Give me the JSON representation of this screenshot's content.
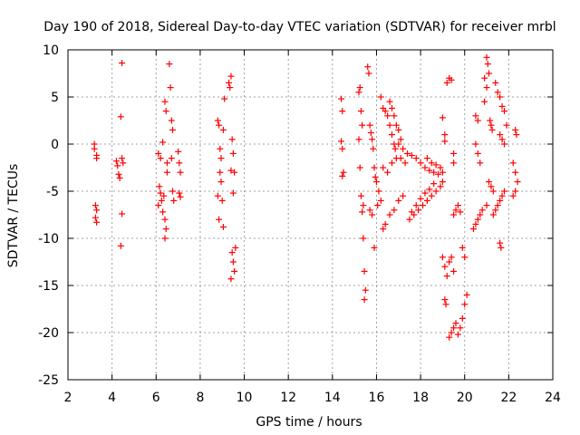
{
  "chart_data": {
    "type": "scatter",
    "title": "Day 190 of 2018, Sidereal Day-to-day VTEC variation (SDTVAR) for receiver mrbl",
    "xlabel": "GPS time / hours",
    "ylabel": "SDTVAR / TECUs",
    "xlim": [
      2,
      24
    ],
    "ylim": [
      -25,
      10
    ],
    "xticks": [
      "2",
      "4",
      "6",
      "8",
      "10",
      "12",
      "14",
      "16",
      "18",
      "20",
      "22",
      "24"
    ],
    "yticks": [
      "10",
      "5",
      "0",
      "-5",
      "-10",
      "-15",
      "-20",
      "-25"
    ],
    "grid": true,
    "marker": "+",
    "color": "#ff0000",
    "series": [
      {
        "name": "SDTVAR",
        "points": [
          [
            3.2,
            0.0
          ],
          [
            3.2,
            -0.5
          ],
          [
            3.3,
            -1.2
          ],
          [
            3.3,
            -1.5
          ],
          [
            3.25,
            -6.5
          ],
          [
            3.3,
            -7.0
          ],
          [
            3.25,
            -7.8
          ],
          [
            3.3,
            -8.3
          ],
          [
            4.2,
            -1.8
          ],
          [
            4.25,
            -2.3
          ],
          [
            4.3,
            -3.2
          ],
          [
            4.35,
            -3.6
          ],
          [
            4.45,
            -1.5
          ],
          [
            4.5,
            -2.0
          ],
          [
            4.4,
            2.9
          ],
          [
            4.45,
            8.6
          ],
          [
            4.45,
            -7.4
          ],
          [
            4.4,
            -10.8
          ],
          [
            6.1,
            -1.0
          ],
          [
            6.2,
            -1.5
          ],
          [
            6.3,
            0.2
          ],
          [
            6.15,
            -4.5
          ],
          [
            6.2,
            -5.2
          ],
          [
            6.25,
            -6.0
          ],
          [
            6.1,
            -6.5
          ],
          [
            6.3,
            -7.2
          ],
          [
            6.35,
            -5.5
          ],
          [
            6.4,
            4.5
          ],
          [
            6.45,
            3.5
          ],
          [
            6.5,
            -2.0
          ],
          [
            6.5,
            -3.0
          ],
          [
            6.4,
            -8.0
          ],
          [
            6.45,
            -9.0
          ],
          [
            6.4,
            -10.0
          ],
          [
            6.6,
            8.5
          ],
          [
            6.65,
            6.0
          ],
          [
            6.7,
            2.5
          ],
          [
            6.75,
            1.5
          ],
          [
            6.7,
            -1.5
          ],
          [
            6.75,
            -5.0
          ],
          [
            6.8,
            -6.0
          ],
          [
            7.0,
            -0.8
          ],
          [
            7.05,
            -2.0
          ],
          [
            7.1,
            -3.0
          ],
          [
            7.05,
            -5.2
          ],
          [
            7.1,
            -5.6
          ],
          [
            8.8,
            2.5
          ],
          [
            8.85,
            2.0
          ],
          [
            8.9,
            -0.5
          ],
          [
            8.95,
            -1.5
          ],
          [
            8.9,
            -3.0
          ],
          [
            8.95,
            -4.0
          ],
          [
            8.8,
            -5.5
          ],
          [
            9.0,
            -6.0
          ],
          [
            8.85,
            -8.0
          ],
          [
            9.05,
            -8.8
          ],
          [
            9.1,
            4.8
          ],
          [
            9.05,
            1.5
          ],
          [
            9.3,
            6.5
          ],
          [
            9.35,
            6.0
          ],
          [
            9.4,
            7.2
          ],
          [
            9.45,
            0.5
          ],
          [
            9.5,
            -1.0
          ],
          [
            9.4,
            -2.8
          ],
          [
            9.5,
            -5.2
          ],
          [
            9.55,
            -3.0
          ],
          [
            9.45,
            -11.5
          ],
          [
            9.5,
            -12.5
          ],
          [
            9.55,
            -13.5
          ],
          [
            9.4,
            -14.3
          ],
          [
            9.6,
            -11.0
          ],
          [
            14.4,
            4.8
          ],
          [
            14.45,
            3.5
          ],
          [
            14.4,
            0.3
          ],
          [
            14.45,
            -0.5
          ],
          [
            14.5,
            -3.0
          ],
          [
            14.45,
            -3.4
          ],
          [
            15.2,
            5.5
          ],
          [
            15.25,
            6.0
          ],
          [
            15.3,
            3.5
          ],
          [
            15.35,
            2.0
          ],
          [
            15.2,
            0.5
          ],
          [
            15.25,
            -2.5
          ],
          [
            15.3,
            -5.5
          ],
          [
            15.4,
            -6.5
          ],
          [
            15.35,
            -7.2
          ],
          [
            15.4,
            -10.0
          ],
          [
            15.45,
            -13.5
          ],
          [
            15.5,
            -15.5
          ],
          [
            15.45,
            -16.5
          ],
          [
            15.6,
            8.2
          ],
          [
            15.65,
            7.5
          ],
          [
            15.7,
            2.0
          ],
          [
            15.75,
            1.2
          ],
          [
            15.8,
            0.5
          ],
          [
            15.85,
            -0.5
          ],
          [
            15.9,
            -2.5
          ],
          [
            15.95,
            -3.5
          ],
          [
            16.0,
            -4.0
          ],
          [
            16.1,
            -5.0
          ],
          [
            16.2,
            -6.0
          ],
          [
            15.7,
            -7.0
          ],
          [
            15.8,
            -7.5
          ],
          [
            15.9,
            -11.0
          ],
          [
            16.05,
            -6.5
          ],
          [
            16.2,
            5.0
          ],
          [
            16.3,
            3.8
          ],
          [
            16.4,
            3.5
          ],
          [
            16.5,
            3.0
          ],
          [
            16.6,
            2.0
          ],
          [
            16.7,
            1.0
          ],
          [
            16.8,
            0.0
          ],
          [
            16.85,
            -0.5
          ],
          [
            16.3,
            -2.5
          ],
          [
            16.5,
            -3.0
          ],
          [
            16.7,
            -2.0
          ],
          [
            16.9,
            -1.5
          ],
          [
            17.1,
            -1.5
          ],
          [
            17.3,
            -2.0
          ],
          [
            16.3,
            -9.0
          ],
          [
            16.4,
            -8.5
          ],
          [
            16.6,
            -7.5
          ],
          [
            16.8,
            -7.0
          ],
          [
            17.0,
            -6.0
          ],
          [
            17.2,
            -5.5
          ],
          [
            16.6,
            4.5
          ],
          [
            16.7,
            3.8
          ],
          [
            16.8,
            3.0
          ],
          [
            16.9,
            2.0
          ],
          [
            17.0,
            1.5
          ],
          [
            17.1,
            0.5
          ],
          [
            17.0,
            0.0
          ],
          [
            17.2,
            -0.5
          ],
          [
            17.4,
            -1.0
          ],
          [
            17.6,
            -1.2
          ],
          [
            17.8,
            -1.5
          ],
          [
            18.0,
            -2.0
          ],
          [
            18.2,
            -2.5
          ],
          [
            18.4,
            -2.8
          ],
          [
            18.6,
            -3.0
          ],
          [
            18.8,
            -3.2
          ],
          [
            17.5,
            -8.0
          ],
          [
            17.7,
            -7.5
          ],
          [
            17.9,
            -7.0
          ],
          [
            18.1,
            -6.5
          ],
          [
            18.3,
            -6.0
          ],
          [
            18.5,
            -5.5
          ],
          [
            18.7,
            -5.0
          ],
          [
            18.9,
            -4.5
          ],
          [
            19.0,
            -4.0
          ],
          [
            17.6,
            -7.2
          ],
          [
            17.8,
            -6.5
          ],
          [
            18.0,
            -5.8
          ],
          [
            18.2,
            -5.2
          ],
          [
            18.4,
            -4.8
          ],
          [
            18.6,
            -4.2
          ],
          [
            18.3,
            -1.5
          ],
          [
            18.5,
            -2.0
          ],
          [
            18.7,
            -2.2
          ],
          [
            18.9,
            -2.5
          ],
          [
            19.0,
            -3.0
          ],
          [
            19.0,
            2.8
          ],
          [
            19.1,
            1.0
          ],
          [
            19.1,
            0.3
          ],
          [
            19.2,
            6.5
          ],
          [
            19.3,
            7.0
          ],
          [
            19.4,
            6.8
          ],
          [
            19.5,
            -1.0
          ],
          [
            19.5,
            -2.0
          ],
          [
            19.0,
            -12.0
          ],
          [
            19.1,
            -13.0
          ],
          [
            19.2,
            -14.0
          ],
          [
            19.3,
            -12.5
          ],
          [
            19.4,
            -12.0
          ],
          [
            19.5,
            -13.5
          ],
          [
            19.1,
            -16.5
          ],
          [
            19.15,
            -17.0
          ],
          [
            19.3,
            -20.5
          ],
          [
            19.4,
            -20.0
          ],
          [
            19.5,
            -19.5
          ],
          [
            19.6,
            -19.0
          ],
          [
            19.7,
            -20.2
          ],
          [
            19.8,
            -19.5
          ],
          [
            19.9,
            -18.5
          ],
          [
            20.0,
            -17.0
          ],
          [
            20.1,
            -16.0
          ],
          [
            19.5,
            -7.5
          ],
          [
            19.6,
            -7.0
          ],
          [
            19.7,
            -6.5
          ],
          [
            19.8,
            -7.2
          ],
          [
            19.9,
            -11.0
          ],
          [
            20.0,
            -12.0
          ],
          [
            20.4,
            -9.0
          ],
          [
            20.5,
            -8.5
          ],
          [
            20.6,
            -8.0
          ],
          [
            20.7,
            -7.5
          ],
          [
            20.8,
            -7.0
          ],
          [
            20.5,
            0.0
          ],
          [
            20.6,
            -1.0
          ],
          [
            20.7,
            -2.0
          ],
          [
            20.5,
            3.0
          ],
          [
            20.6,
            2.5
          ],
          [
            20.9,
            7.0
          ],
          [
            21.0,
            6.0
          ],
          [
            20.9,
            4.5
          ],
          [
            21.0,
            9.2
          ],
          [
            21.05,
            8.5
          ],
          [
            21.1,
            7.5
          ],
          [
            21.15,
            2.5
          ],
          [
            21.2,
            2.0
          ],
          [
            21.25,
            1.5
          ],
          [
            21.1,
            -4.0
          ],
          [
            21.2,
            -4.5
          ],
          [
            21.3,
            -5.0
          ],
          [
            21.0,
            -6.5
          ],
          [
            21.4,
            6.5
          ],
          [
            21.5,
            5.5
          ],
          [
            21.6,
            5.0
          ],
          [
            21.7,
            4.0
          ],
          [
            21.8,
            3.5
          ],
          [
            21.9,
            2.0
          ],
          [
            21.3,
            -7.5
          ],
          [
            21.4,
            -7.0
          ],
          [
            21.5,
            -6.5
          ],
          [
            21.6,
            -6.0
          ],
          [
            21.7,
            -5.5
          ],
          [
            21.8,
            -5.0
          ],
          [
            21.6,
            1.0
          ],
          [
            21.7,
            0.5
          ],
          [
            21.8,
            0.0
          ],
          [
            21.6,
            -10.5
          ],
          [
            21.65,
            -11.0
          ],
          [
            22.3,
            1.5
          ],
          [
            22.35,
            1.0
          ],
          [
            22.2,
            -2.0
          ],
          [
            22.3,
            -3.0
          ],
          [
            22.4,
            -4.0
          ],
          [
            22.3,
            -5.0
          ],
          [
            22.2,
            -5.5
          ]
        ]
      }
    ]
  }
}
